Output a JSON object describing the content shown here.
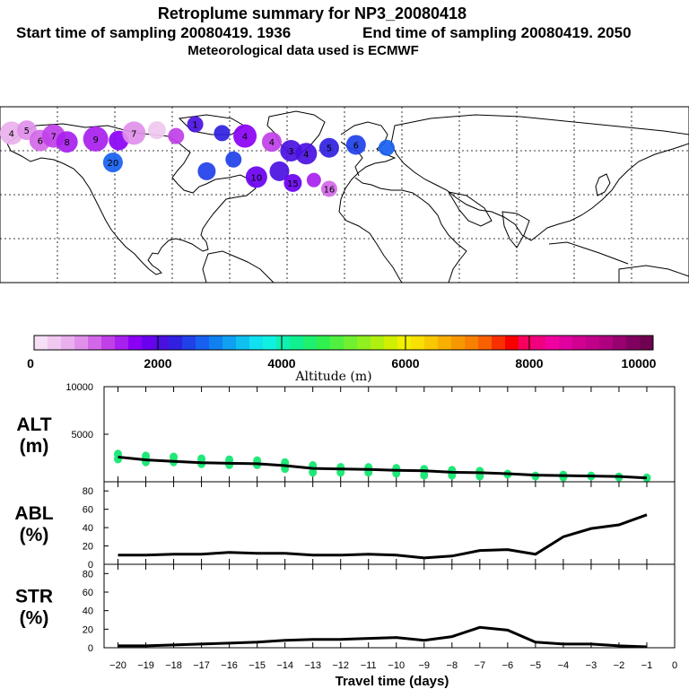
{
  "header": {
    "title": "Retroplume summary for NP3_20080418",
    "start_label": "Start time of sampling 20080419.  1936",
    "end_label": "End time of sampling 20080419.  2050",
    "met_label": "Meteorological data used is ECMWF"
  },
  "colorbar": {
    "title": "Altitude (m)",
    "ticks": [
      "0",
      "2000",
      "4000",
      "6000",
      "8000",
      "10000"
    ],
    "tick_values": [
      0,
      2000,
      4000,
      6000,
      8000,
      10000
    ],
    "colors": [
      "#f6e0f6",
      "#f0c8f0",
      "#eab0ee",
      "#e090ea",
      "#d268e8",
      "#c040e8",
      "#a820ee",
      "#8a00f4",
      "#6a00f0",
      "#4a10e0",
      "#3020e0",
      "#2040e8",
      "#1860f0",
      "#1080f0",
      "#10a0f0",
      "#10c0f0",
      "#10e0f0",
      "#10f0e0",
      "#10f0b0",
      "#10f090",
      "#20f070",
      "#30f050",
      "#50f040",
      "#70f030",
      "#90f020",
      "#b0f010",
      "#d0f000",
      "#f0f000",
      "#f8e000",
      "#f8c800",
      "#f8b000",
      "#f89800",
      "#f88000",
      "#f86000",
      "#f83000",
      "#f80000",
      "#f80060",
      "#f00080",
      "#f000a0",
      "#e000a0",
      "#d00090",
      "#c00088",
      "#b00080",
      "#980070",
      "#800060",
      "#700050"
    ]
  },
  "map": {
    "name": "retroplume-map",
    "points": [
      {
        "lon": -174,
        "lat": 72,
        "label": "4",
        "r": 13,
        "alt": 600
      },
      {
        "lon": -166,
        "lat": 74,
        "label": "5",
        "r": 11,
        "alt": 700
      },
      {
        "lon": -159,
        "lat": 67,
        "label": "6",
        "r": 12,
        "alt": 900
      },
      {
        "lon": -152,
        "lat": 70,
        "label": "7",
        "r": 13,
        "alt": 1200
      },
      {
        "lon": -145,
        "lat": 66,
        "label": "8",
        "r": 12,
        "alt": 1400
      },
      {
        "lon": -130,
        "lat": 68,
        "label": "9",
        "r": 14,
        "alt": 1500
      },
      {
        "lon": -118,
        "lat": 67,
        "label": "",
        "r": 11,
        "alt": 1700
      },
      {
        "lon": -110,
        "lat": 72,
        "label": "7",
        "r": 13,
        "alt": 800
      },
      {
        "lon": -98,
        "lat": 74,
        "label": "",
        "r": 10,
        "alt": 400
      },
      {
        "lon": -88,
        "lat": 70,
        "label": "",
        "r": 9,
        "alt": 1100
      },
      {
        "lon": -78,
        "lat": 78,
        "label": "1",
        "r": 9,
        "alt": 2100
      },
      {
        "lon": -64,
        "lat": 72,
        "label": "",
        "r": 9,
        "alt": 2300
      },
      {
        "lon": -52,
        "lat": 70,
        "label": "4",
        "r": 13,
        "alt": 1600
      },
      {
        "lon": -38,
        "lat": 66,
        "label": "4",
        "r": 11,
        "alt": 1300
      },
      {
        "lon": -28,
        "lat": 60,
        "label": "3",
        "r": 12,
        "alt": 2100
      },
      {
        "lon": -20,
        "lat": 58,
        "label": "4",
        "r": 12,
        "alt": 2000
      },
      {
        "lon": -8,
        "lat": 62,
        "label": "5",
        "r": 11,
        "alt": 2200
      },
      {
        "lon": 6,
        "lat": 64,
        "label": "6",
        "r": 11,
        "alt": 2600
      },
      {
        "lon": 22,
        "lat": 62,
        "label": "",
        "r": 9,
        "alt": 2800
      },
      {
        "lon": -121,
        "lat": 52,
        "label": "20",
        "r": 11,
        "alt": 2700
      },
      {
        "lon": -72,
        "lat": 46,
        "label": "",
        "r": 10,
        "alt": 2400
      },
      {
        "lon": -58,
        "lat": 54,
        "label": "",
        "r": 9,
        "alt": 2500
      },
      {
        "lon": -46,
        "lat": 42,
        "label": "10",
        "r": 12,
        "alt": 1900
      },
      {
        "lon": -34,
        "lat": 46,
        "label": "",
        "r": 11,
        "alt": 2000
      },
      {
        "lon": -27,
        "lat": 38,
        "label": "15",
        "r": 10,
        "alt": 1800
      },
      {
        "lon": -16,
        "lat": 40,
        "label": "",
        "r": 8,
        "alt": 1500
      },
      {
        "lon": -8,
        "lat": 34,
        "label": "16",
        "r": 9,
        "alt": 900
      }
    ]
  },
  "chart_data": [
    {
      "type": "scatter",
      "name": "alt-panel",
      "ylabel": "ALT\n(m)",
      "ylim": [
        0,
        10000
      ],
      "yticks": [
        "5000",
        "10000"
      ],
      "line_x": [
        -20,
        -19,
        -18,
        -17,
        -16,
        -15,
        -14,
        -13,
        -12,
        -11,
        -10,
        -9,
        -8,
        -7,
        -6,
        -5,
        -4,
        -3,
        -2,
        -1
      ],
      "line_y": [
        2600,
        2300,
        2150,
        2000,
        1950,
        1900,
        1700,
        1400,
        1350,
        1300,
        1200,
        1150,
        1000,
        950,
        850,
        700,
        650,
        600,
        550,
        400
      ],
      "points_x": [
        -20,
        -20,
        -19,
        -19,
        -18,
        -18,
        -17,
        -17,
        -16,
        -16,
        -15,
        -15,
        -14,
        -14,
        -13,
        -13,
        -12,
        -12,
        -11,
        -11,
        -10,
        -10,
        -9,
        -9,
        -8,
        -8,
        -7,
        -7,
        -6,
        -5,
        -4,
        -4,
        -3,
        -2,
        -1
      ],
      "points_y": [
        2900,
        2400,
        2700,
        2100,
        2600,
        2100,
        2400,
        1900,
        2300,
        1800,
        2200,
        1800,
        2000,
        1400,
        1700,
        1000,
        1500,
        1000,
        1500,
        1000,
        1400,
        900,
        1300,
        700,
        1200,
        700,
        1100,
        600,
        800,
        600,
        700,
        500,
        600,
        500,
        400
      ]
    },
    {
      "type": "line",
      "name": "abl-panel",
      "ylabel": "ABL\n(%)",
      "ylim": [
        0,
        90
      ],
      "yticks": [
        "0",
        "20",
        "40",
        "60",
        "80"
      ],
      "x": [
        -20,
        -19,
        -18,
        -17,
        -16,
        -15,
        -14,
        -13,
        -12,
        -11,
        -10,
        -9,
        -8,
        -7,
        -6,
        -5,
        -4,
        -3,
        -2,
        -1
      ],
      "y": [
        10,
        10,
        11,
        11,
        13,
        12,
        12,
        10,
        10,
        11,
        10,
        7,
        9,
        15,
        16,
        11,
        30,
        39,
        43,
        54
      ]
    },
    {
      "type": "line",
      "name": "str-panel",
      "ylabel": "STR\n(%)",
      "ylim": [
        0,
        90
      ],
      "yticks": [
        "0",
        "20",
        "40",
        "60",
        "80"
      ],
      "x": [
        -20,
        -19,
        -18,
        -17,
        -16,
        -15,
        -14,
        -13,
        -12,
        -11,
        -10,
        -9,
        -8,
        -7,
        -6,
        -5,
        -4,
        -3,
        -2,
        -1
      ],
      "y": [
        2,
        2,
        3,
        4,
        5,
        6,
        8,
        9,
        9,
        10,
        11,
        8,
        12,
        22,
        19,
        6,
        4,
        4,
        2,
        1
      ]
    }
  ],
  "xaxis": {
    "label": "Travel time (days)",
    "ticks": [
      "−20",
      "−19",
      "−18",
      "−17",
      "−16",
      "−15",
      "−14",
      "−13",
      "−12",
      "−11",
      "−10",
      "−9",
      "−8",
      "−7",
      "−6",
      "−5",
      "−4",
      "−3",
      "−2",
      "−1",
      "0"
    ],
    "tick_values": [
      -20,
      -19,
      -18,
      -17,
      -16,
      -15,
      -14,
      -13,
      -12,
      -11,
      -10,
      -9,
      -8,
      -7,
      -6,
      -5,
      -4,
      -3,
      -2,
      -1,
      0
    ]
  }
}
